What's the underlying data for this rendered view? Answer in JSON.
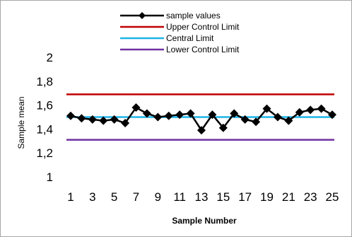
{
  "chart_data": {
    "type": "line",
    "xlabel": "Sample Number",
    "ylabel": "Sample mean",
    "ylim": [
      1,
      2
    ],
    "xlim": [
      1,
      25
    ],
    "y_ticks": [
      "1",
      "1,2",
      "1,4",
      "1,6",
      "1,8",
      "2"
    ],
    "x_ticks": [
      "1",
      "3",
      "5",
      "7",
      "9",
      "11",
      "13",
      "15",
      "17",
      "19",
      "21",
      "23",
      "25"
    ],
    "grid": false,
    "legend_position": "top",
    "series": [
      {
        "name": "sample values",
        "color": "#000000",
        "marker": "diamond",
        "x": [
          1,
          2,
          3,
          4,
          5,
          6,
          7,
          8,
          9,
          10,
          11,
          12,
          13,
          14,
          15,
          16,
          17,
          18,
          19,
          20,
          21,
          22,
          23,
          24,
          25
        ],
        "values": [
          1.51,
          1.49,
          1.48,
          1.47,
          1.48,
          1.45,
          1.58,
          1.53,
          1.5,
          1.51,
          1.52,
          1.53,
          1.39,
          1.52,
          1.41,
          1.53,
          1.48,
          1.46,
          1.57,
          1.5,
          1.47,
          1.54,
          1.56,
          1.57,
          1.52
        ]
      },
      {
        "name": "Upper Control Limit",
        "color": "#c00000",
        "constant": 1.69
      },
      {
        "name": "Central Limit",
        "color": "#1fb4e6",
        "constant": 1.5
      },
      {
        "name": "Lower Control Limit",
        "color": "#7030a0",
        "constant": 1.31
      }
    ]
  }
}
